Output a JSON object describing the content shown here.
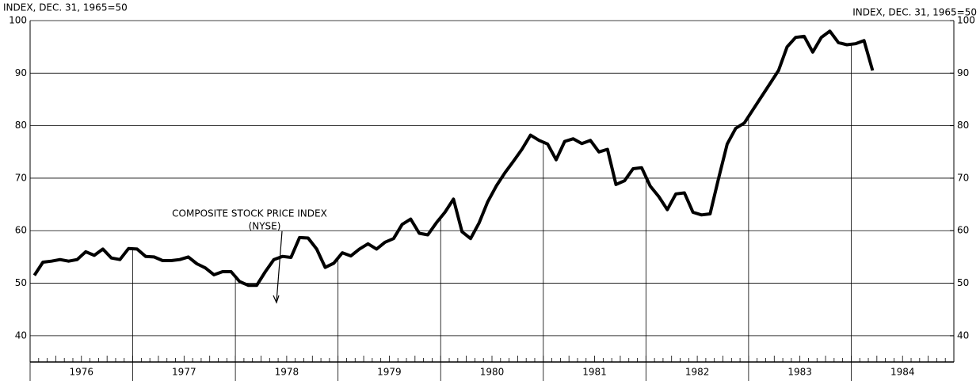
{
  "chart_data": {
    "type": "line",
    "y_axis_label": "INDEX, DEC. 31, 1965=50",
    "y2_axis_label": "INDEX, DEC. 31, 1965=50",
    "annotation": [
      "COMPOSITE STOCK PRICE INDEX",
      "(NYSE)"
    ],
    "year_labels": [
      "1976",
      "1977",
      "1978",
      "1979",
      "1980",
      "1981",
      "1982",
      "1983",
      "1984"
    ],
    "categories": [
      null,
      null,
      null,
      null,
      null,
      null,
      null,
      null,
      null,
      null,
      null,
      null,
      null,
      null,
      null,
      null,
      null,
      null,
      null,
      null,
      null,
      null,
      null,
      null,
      null,
      null,
      null,
      null,
      null,
      null,
      null,
      null,
      null,
      null,
      null,
      null,
      null,
      null,
      null,
      null,
      null,
      null,
      null,
      null,
      null,
      null,
      null,
      null,
      null,
      null,
      null,
      null,
      null,
      null,
      null,
      null,
      null,
      null,
      null,
      null,
      null,
      null,
      null,
      null,
      null,
      null,
      null,
      null,
      null,
      null,
      null,
      null,
      null,
      null,
      null,
      null,
      null,
      null,
      null,
      null,
      null,
      null,
      null,
      null,
      null,
      null,
      null,
      null,
      null,
      null,
      null,
      null,
      null,
      null,
      null,
      null,
      null,
      null,
      null,
      null,
      null,
      null,
      null,
      null,
      null,
      null,
      null,
      null
    ],
    "series": [
      {
        "name": "COMPOSITE STOCK PRICE INDEX (NYSE)",
        "color": "#000000",
        "values": [
          51.5,
          54,
          54.2,
          54.5,
          54.2,
          54.5,
          56,
          55.3,
          56.5,
          54.8,
          54.5,
          56.6,
          56.5,
          55.1,
          55,
          54.3,
          54.3,
          54.5,
          55,
          53.7,
          52.9,
          51.6,
          52.2,
          52.2,
          50.3,
          49.6,
          49.6,
          52.2,
          54.5,
          55.1,
          54.9,
          58.7,
          58.6,
          56.5,
          53,
          53.8,
          55.8,
          55.2,
          56.5,
          57.5,
          56.5,
          57.8,
          58.5,
          61.2,
          62.2,
          59.5,
          59.2,
          61.5,
          63.5,
          66,
          59.8,
          58.5,
          61.5,
          65.5,
          68.5,
          71,
          73.2,
          75.5,
          78.2,
          77.2,
          76.5,
          73.5,
          77,
          77.5,
          76.6,
          77.2,
          75,
          75.5,
          68.8,
          69.5,
          71.8,
          72,
          68.5,
          66.5,
          64,
          67,
          67.2,
          63.5,
          63,
          63.2,
          70,
          76.5,
          79.5,
          80.5,
          83,
          85.5,
          88,
          90.5,
          95,
          96.8,
          97,
          94,
          96.8,
          98,
          95.8,
          95.4,
          95.6,
          96.2,
          90.5,
          null,
          null,
          null,
          null,
          null,
          null,
          null,
          null,
          null
        ]
      }
    ],
    "ylim": [
      35,
      100
    ],
    "yticks": [
      40,
      50,
      60,
      70,
      80,
      90,
      100
    ],
    "y2lim": [
      35,
      100
    ],
    "y2ticks": [
      40,
      50,
      60,
      70,
      80,
      90,
      100
    ],
    "grid": true
  }
}
